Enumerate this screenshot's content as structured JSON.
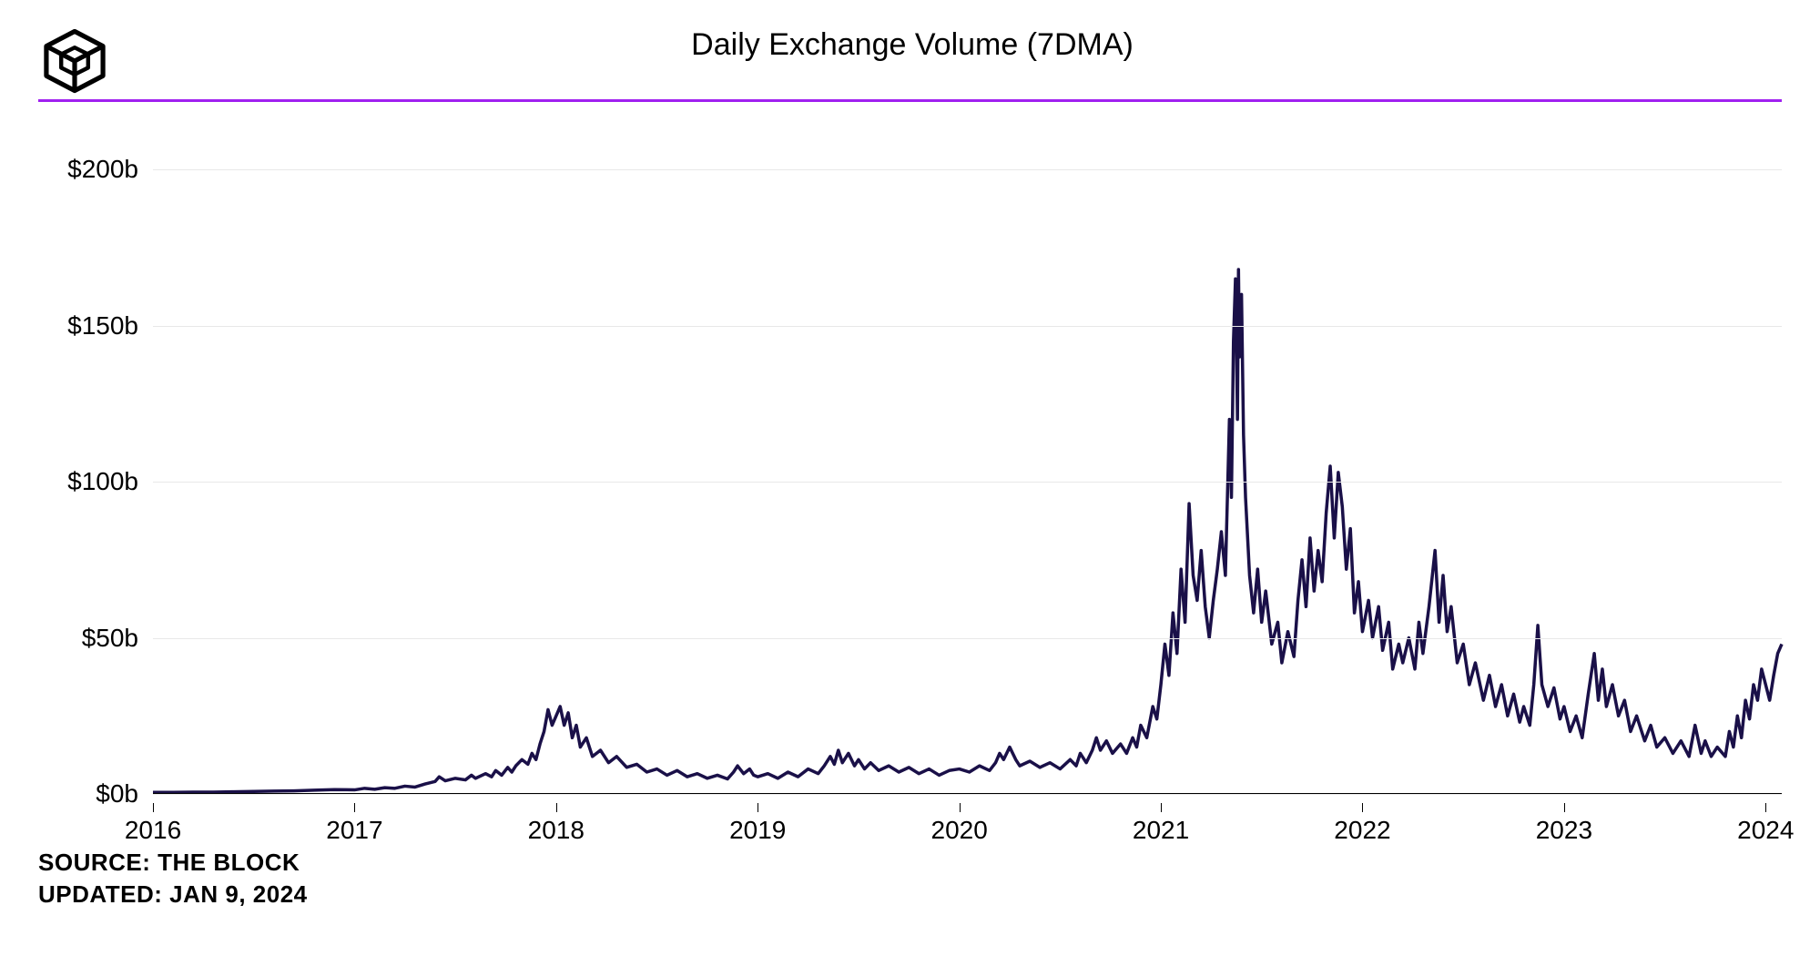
{
  "header": {
    "title": "Daily Exchange Volume (7DMA)",
    "logo_color": "#000000"
  },
  "divider_color": "#a020f0",
  "chart": {
    "type": "line",
    "line_color": "#1a1048",
    "line_width": 3.5,
    "background_color": "#ffffff",
    "grid_color": "#e8e8e8",
    "axis_color": "#000000",
    "x_domain": [
      2016,
      2024.08
    ],
    "y_domain": [
      0,
      210
    ],
    "y_ticks": [
      0,
      50,
      100,
      150,
      200
    ],
    "y_tick_labels": [
      "$0b",
      "$50b",
      "$100b",
      "$150b",
      "$200b"
    ],
    "x_ticks": [
      2016,
      2017,
      2018,
      2019,
      2020,
      2021,
      2022,
      2023,
      2024
    ],
    "x_tick_labels": [
      "2016",
      "2017",
      "2018",
      "2019",
      "2020",
      "2021",
      "2022",
      "2023",
      "2024"
    ],
    "data": [
      [
        2016.0,
        0.5
      ],
      [
        2016.1,
        0.5
      ],
      [
        2016.2,
        0.6
      ],
      [
        2016.3,
        0.6
      ],
      [
        2016.4,
        0.7
      ],
      [
        2016.5,
        0.8
      ],
      [
        2016.6,
        0.9
      ],
      [
        2016.7,
        1.0
      ],
      [
        2016.8,
        1.2
      ],
      [
        2016.9,
        1.4
      ],
      [
        2017.0,
        1.3
      ],
      [
        2017.05,
        1.8
      ],
      [
        2017.1,
        1.5
      ],
      [
        2017.15,
        2.0
      ],
      [
        2017.2,
        1.8
      ],
      [
        2017.25,
        2.5
      ],
      [
        2017.3,
        2.2
      ],
      [
        2017.35,
        3.2
      ],
      [
        2017.4,
        4.0
      ],
      [
        2017.42,
        5.5
      ],
      [
        2017.45,
        4.2
      ],
      [
        2017.5,
        5.0
      ],
      [
        2017.55,
        4.5
      ],
      [
        2017.58,
        6.0
      ],
      [
        2017.6,
        5.0
      ],
      [
        2017.65,
        6.5
      ],
      [
        2017.68,
        5.5
      ],
      [
        2017.7,
        7.5
      ],
      [
        2017.73,
        6.0
      ],
      [
        2017.76,
        8.5
      ],
      [
        2017.78,
        7.0
      ],
      [
        2017.8,
        9.0
      ],
      [
        2017.83,
        11.0
      ],
      [
        2017.86,
        9.5
      ],
      [
        2017.88,
        13.0
      ],
      [
        2017.9,
        11.0
      ],
      [
        2017.92,
        16.0
      ],
      [
        2017.94,
        20.0
      ],
      [
        2017.96,
        27.0
      ],
      [
        2017.98,
        22.0
      ],
      [
        2018.0,
        25.0
      ],
      [
        2018.02,
        28.0
      ],
      [
        2018.04,
        22.0
      ],
      [
        2018.06,
        26.0
      ],
      [
        2018.08,
        18.0
      ],
      [
        2018.1,
        22.0
      ],
      [
        2018.12,
        15.0
      ],
      [
        2018.15,
        18.0
      ],
      [
        2018.18,
        12.0
      ],
      [
        2018.22,
        14.0
      ],
      [
        2018.26,
        10.0
      ],
      [
        2018.3,
        12.0
      ],
      [
        2018.35,
        8.5
      ],
      [
        2018.4,
        9.5
      ],
      [
        2018.45,
        7.0
      ],
      [
        2018.5,
        8.0
      ],
      [
        2018.55,
        6.0
      ],
      [
        2018.6,
        7.5
      ],
      [
        2018.65,
        5.5
      ],
      [
        2018.7,
        6.5
      ],
      [
        2018.75,
        5.0
      ],
      [
        2018.8,
        6.0
      ],
      [
        2018.85,
        4.8
      ],
      [
        2018.88,
        7.0
      ],
      [
        2018.9,
        9.0
      ],
      [
        2018.93,
        6.5
      ],
      [
        2018.96,
        8.0
      ],
      [
        2018.98,
        6.0
      ],
      [
        2019.0,
        5.5
      ],
      [
        2019.05,
        6.5
      ],
      [
        2019.1,
        5.0
      ],
      [
        2019.15,
        7.0
      ],
      [
        2019.2,
        5.5
      ],
      [
        2019.25,
        8.0
      ],
      [
        2019.3,
        6.5
      ],
      [
        2019.33,
        9.0
      ],
      [
        2019.36,
        12.0
      ],
      [
        2019.38,
        9.5
      ],
      [
        2019.4,
        14.0
      ],
      [
        2019.42,
        10.0
      ],
      [
        2019.45,
        13.0
      ],
      [
        2019.48,
        9.0
      ],
      [
        2019.5,
        11.0
      ],
      [
        2019.53,
        8.0
      ],
      [
        2019.56,
        10.0
      ],
      [
        2019.6,
        7.5
      ],
      [
        2019.65,
        9.0
      ],
      [
        2019.7,
        7.0
      ],
      [
        2019.75,
        8.5
      ],
      [
        2019.8,
        6.5
      ],
      [
        2019.85,
        8.0
      ],
      [
        2019.9,
        6.0
      ],
      [
        2019.95,
        7.5
      ],
      [
        2020.0,
        8.0
      ],
      [
        2020.05,
        7.0
      ],
      [
        2020.1,
        9.0
      ],
      [
        2020.15,
        7.5
      ],
      [
        2020.18,
        10.0
      ],
      [
        2020.2,
        13.0
      ],
      [
        2020.22,
        11.0
      ],
      [
        2020.25,
        15.0
      ],
      [
        2020.28,
        11.0
      ],
      [
        2020.3,
        9.0
      ],
      [
        2020.35,
        10.5
      ],
      [
        2020.4,
        8.5
      ],
      [
        2020.45,
        10.0
      ],
      [
        2020.5,
        8.0
      ],
      [
        2020.55,
        11.0
      ],
      [
        2020.58,
        9.0
      ],
      [
        2020.6,
        13.0
      ],
      [
        2020.63,
        10.0
      ],
      [
        2020.66,
        14.0
      ],
      [
        2020.68,
        18.0
      ],
      [
        2020.7,
        14.0
      ],
      [
        2020.73,
        17.0
      ],
      [
        2020.76,
        13.0
      ],
      [
        2020.8,
        16.0
      ],
      [
        2020.83,
        13.0
      ],
      [
        2020.86,
        18.0
      ],
      [
        2020.88,
        15.0
      ],
      [
        2020.9,
        22.0
      ],
      [
        2020.93,
        18.0
      ],
      [
        2020.96,
        28.0
      ],
      [
        2020.98,
        24.0
      ],
      [
        2021.0,
        35.0
      ],
      [
        2021.02,
        48.0
      ],
      [
        2021.04,
        38.0
      ],
      [
        2021.06,
        58.0
      ],
      [
        2021.08,
        45.0
      ],
      [
        2021.1,
        72.0
      ],
      [
        2021.12,
        55.0
      ],
      [
        2021.14,
        93.0
      ],
      [
        2021.16,
        70.0
      ],
      [
        2021.18,
        62.0
      ],
      [
        2021.2,
        78.0
      ],
      [
        2021.22,
        60.0
      ],
      [
        2021.24,
        50.0
      ],
      [
        2021.26,
        62.0
      ],
      [
        2021.28,
        72.0
      ],
      [
        2021.3,
        84.0
      ],
      [
        2021.32,
        70.0
      ],
      [
        2021.34,
        120.0
      ],
      [
        2021.35,
        95.0
      ],
      [
        2021.36,
        145.0
      ],
      [
        2021.37,
        165.0
      ],
      [
        2021.38,
        120.0
      ],
      [
        2021.385,
        168.0
      ],
      [
        2021.39,
        140.0
      ],
      [
        2021.4,
        160.0
      ],
      [
        2021.41,
        115.0
      ],
      [
        2021.42,
        95.0
      ],
      [
        2021.44,
        70.0
      ],
      [
        2021.46,
        58.0
      ],
      [
        2021.48,
        72.0
      ],
      [
        2021.5,
        55.0
      ],
      [
        2021.52,
        65.0
      ],
      [
        2021.55,
        48.0
      ],
      [
        2021.58,
        55.0
      ],
      [
        2021.6,
        42.0
      ],
      [
        2021.63,
        52.0
      ],
      [
        2021.66,
        44.0
      ],
      [
        2021.68,
        62.0
      ],
      [
        2021.7,
        75.0
      ],
      [
        2021.72,
        60.0
      ],
      [
        2021.74,
        82.0
      ],
      [
        2021.76,
        65.0
      ],
      [
        2021.78,
        78.0
      ],
      [
        2021.8,
        68.0
      ],
      [
        2021.82,
        90.0
      ],
      [
        2021.84,
        105.0
      ],
      [
        2021.86,
        82.0
      ],
      [
        2021.88,
        103.0
      ],
      [
        2021.9,
        92.0
      ],
      [
        2021.92,
        72.0
      ],
      [
        2021.94,
        85.0
      ],
      [
        2021.96,
        58.0
      ],
      [
        2021.98,
        68.0
      ],
      [
        2022.0,
        52.0
      ],
      [
        2022.03,
        62.0
      ],
      [
        2022.05,
        50.0
      ],
      [
        2022.08,
        60.0
      ],
      [
        2022.1,
        46.0
      ],
      [
        2022.13,
        55.0
      ],
      [
        2022.15,
        40.0
      ],
      [
        2022.18,
        48.0
      ],
      [
        2022.2,
        42.0
      ],
      [
        2022.23,
        50.0
      ],
      [
        2022.26,
        40.0
      ],
      [
        2022.28,
        55.0
      ],
      [
        2022.3,
        45.0
      ],
      [
        2022.33,
        60.0
      ],
      [
        2022.36,
        78.0
      ],
      [
        2022.38,
        55.0
      ],
      [
        2022.4,
        70.0
      ],
      [
        2022.42,
        52.0
      ],
      [
        2022.44,
        60.0
      ],
      [
        2022.47,
        42.0
      ],
      [
        2022.5,
        48.0
      ],
      [
        2022.53,
        35.0
      ],
      [
        2022.56,
        42.0
      ],
      [
        2022.6,
        30.0
      ],
      [
        2022.63,
        38.0
      ],
      [
        2022.66,
        28.0
      ],
      [
        2022.69,
        35.0
      ],
      [
        2022.72,
        25.0
      ],
      [
        2022.75,
        32.0
      ],
      [
        2022.78,
        23.0
      ],
      [
        2022.8,
        28.0
      ],
      [
        2022.83,
        22.0
      ],
      [
        2022.85,
        35.0
      ],
      [
        2022.87,
        54.0
      ],
      [
        2022.89,
        35.0
      ],
      [
        2022.92,
        28.0
      ],
      [
        2022.95,
        34.0
      ],
      [
        2022.98,
        24.0
      ],
      [
        2023.0,
        28.0
      ],
      [
        2023.03,
        20.0
      ],
      [
        2023.06,
        25.0
      ],
      [
        2023.09,
        18.0
      ],
      [
        2023.12,
        32.0
      ],
      [
        2023.15,
        45.0
      ],
      [
        2023.17,
        30.0
      ],
      [
        2023.19,
        40.0
      ],
      [
        2023.21,
        28.0
      ],
      [
        2023.24,
        35.0
      ],
      [
        2023.27,
        25.0
      ],
      [
        2023.3,
        30.0
      ],
      [
        2023.33,
        20.0
      ],
      [
        2023.36,
        25.0
      ],
      [
        2023.4,
        17.0
      ],
      [
        2023.43,
        22.0
      ],
      [
        2023.46,
        15.0
      ],
      [
        2023.5,
        18.0
      ],
      [
        2023.54,
        13.0
      ],
      [
        2023.58,
        17.0
      ],
      [
        2023.62,
        12.0
      ],
      [
        2023.65,
        22.0
      ],
      [
        2023.68,
        13.0
      ],
      [
        2023.7,
        17.0
      ],
      [
        2023.73,
        12.0
      ],
      [
        2023.76,
        15.0
      ],
      [
        2023.8,
        12.0
      ],
      [
        2023.82,
        20.0
      ],
      [
        2023.84,
        15.0
      ],
      [
        2023.86,
        25.0
      ],
      [
        2023.88,
        18.0
      ],
      [
        2023.9,
        30.0
      ],
      [
        2023.92,
        24.0
      ],
      [
        2023.94,
        35.0
      ],
      [
        2023.96,
        30.0
      ],
      [
        2023.98,
        40.0
      ],
      [
        2024.0,
        35.0
      ],
      [
        2024.02,
        30.0
      ],
      [
        2024.04,
        38.0
      ],
      [
        2024.06,
        45.0
      ],
      [
        2024.08,
        48.0
      ]
    ]
  },
  "footer": {
    "source_label": "SOURCE:",
    "source_value": "THE BLOCK",
    "updated_label": "UPDATED:",
    "updated_value": "JAN 9, 2024"
  }
}
